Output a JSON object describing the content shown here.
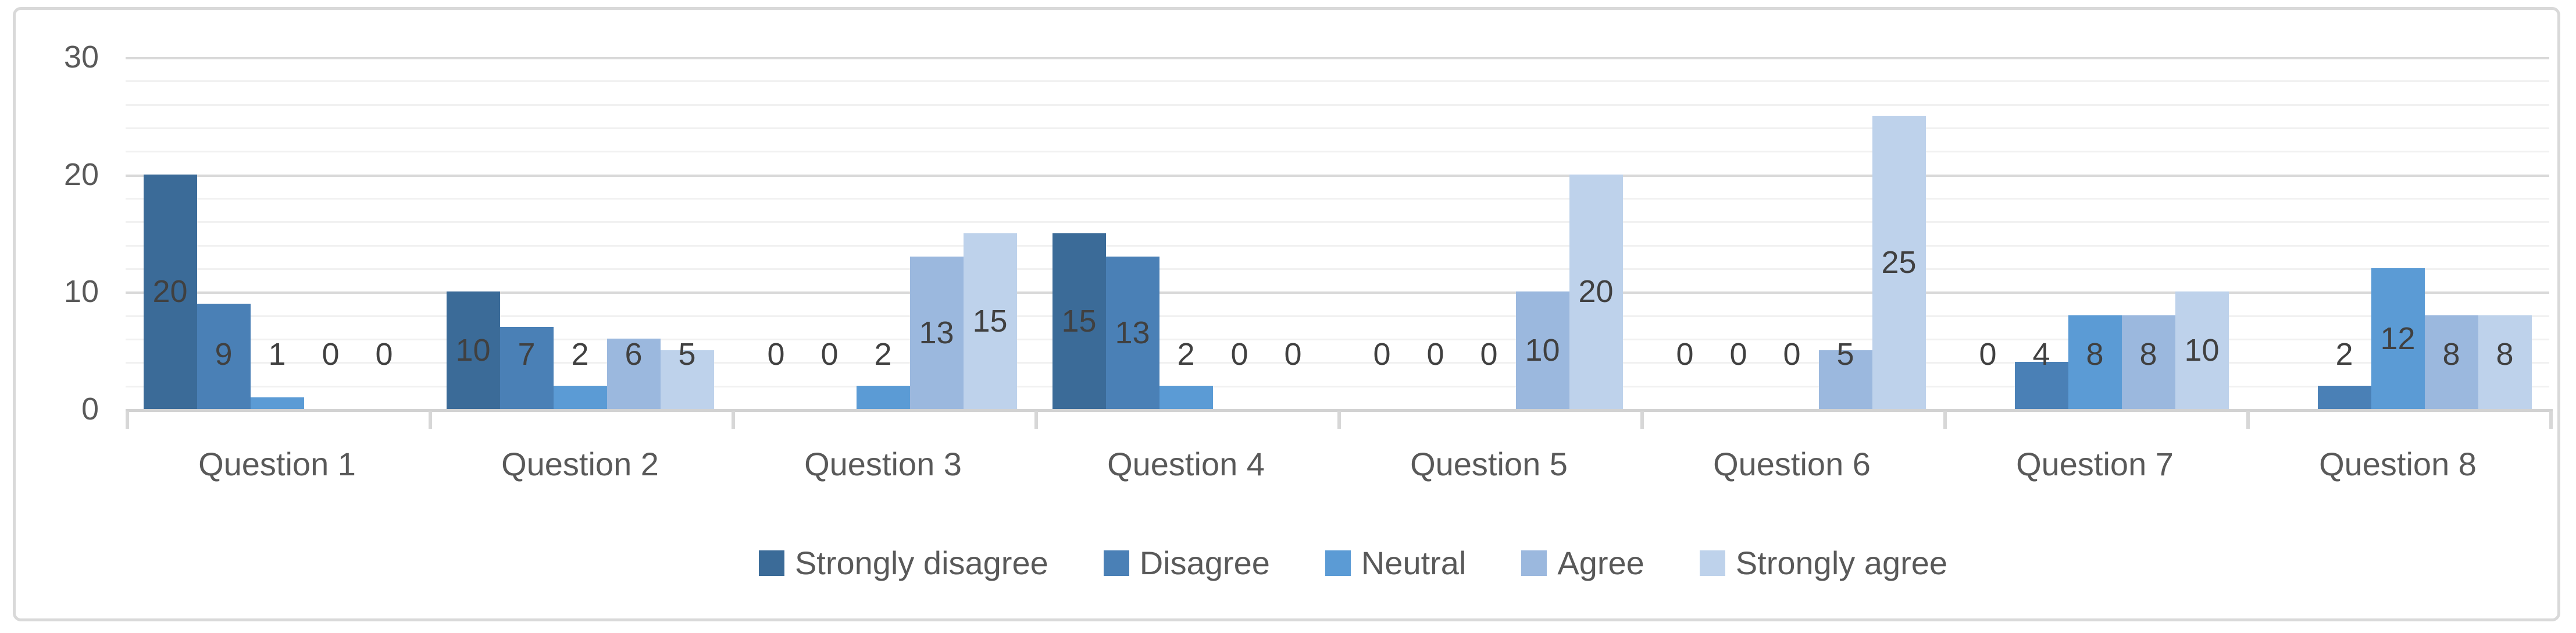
{
  "chart_data": {
    "type": "bar",
    "title": "",
    "xlabel": "",
    "ylabel": "",
    "categories": [
      "Question 1",
      "Question 2",
      "Question 3",
      "Question 4",
      "Question 5",
      "Question 6",
      "Question 7",
      "Question 8"
    ],
    "series": [
      {
        "name": "Strongly disagree",
        "color": "#3B6B98",
        "values": [
          20,
          10,
          0,
          15,
          0,
          0,
          0,
          0
        ]
      },
      {
        "name": "Disagree",
        "color": "#4A80B6",
        "values": [
          9,
          7,
          0,
          13,
          0,
          0,
          4,
          2
        ]
      },
      {
        "name": "Neutral",
        "color": "#5B9BD5",
        "values": [
          1,
          2,
          2,
          2,
          0,
          0,
          8,
          12
        ]
      },
      {
        "name": "Agree",
        "color": "#9BB8DE",
        "values": [
          0,
          6,
          13,
          0,
          10,
          5,
          8,
          8
        ]
      },
      {
        "name": "Strongly agree",
        "color": "#BED2EB",
        "values": [
          0,
          5,
          15,
          0,
          20,
          25,
          10,
          8
        ]
      }
    ],
    "data_labels_by_category": [
      [
        "20",
        "9",
        "1",
        "0",
        "0"
      ],
      [
        "10",
        "7",
        "2",
        "6",
        "5"
      ],
      [
        "0",
        "0",
        "2",
        "13",
        "15"
      ],
      [
        "15",
        "13",
        "2",
        "0",
        "0"
      ],
      [
        "0",
        "0",
        "0",
        "10",
        "20"
      ],
      [
        "0",
        "0",
        "0",
        "5",
        "25"
      ],
      [
        "0",
        "4",
        "8",
        "8",
        "10"
      ],
      [
        "",
        "2",
        "12",
        "8",
        "8"
      ]
    ],
    "y_axis": {
      "min": 0,
      "max": 30,
      "major_unit": 10,
      "minor_unit": 2,
      "tick_labels": [
        "0",
        "10",
        "20",
        "30"
      ]
    },
    "grid": true,
    "legend_position": "bottom",
    "colors": {
      "major_gridline": "#D9D9D9",
      "minor_gridline": "#F1F1F1",
      "axis_line": "#D2D2D2",
      "axis_text": "#595959",
      "data_label_text": "#404040",
      "frame_border": "#D9D9D9",
      "background": "#FFFFFF"
    }
  }
}
